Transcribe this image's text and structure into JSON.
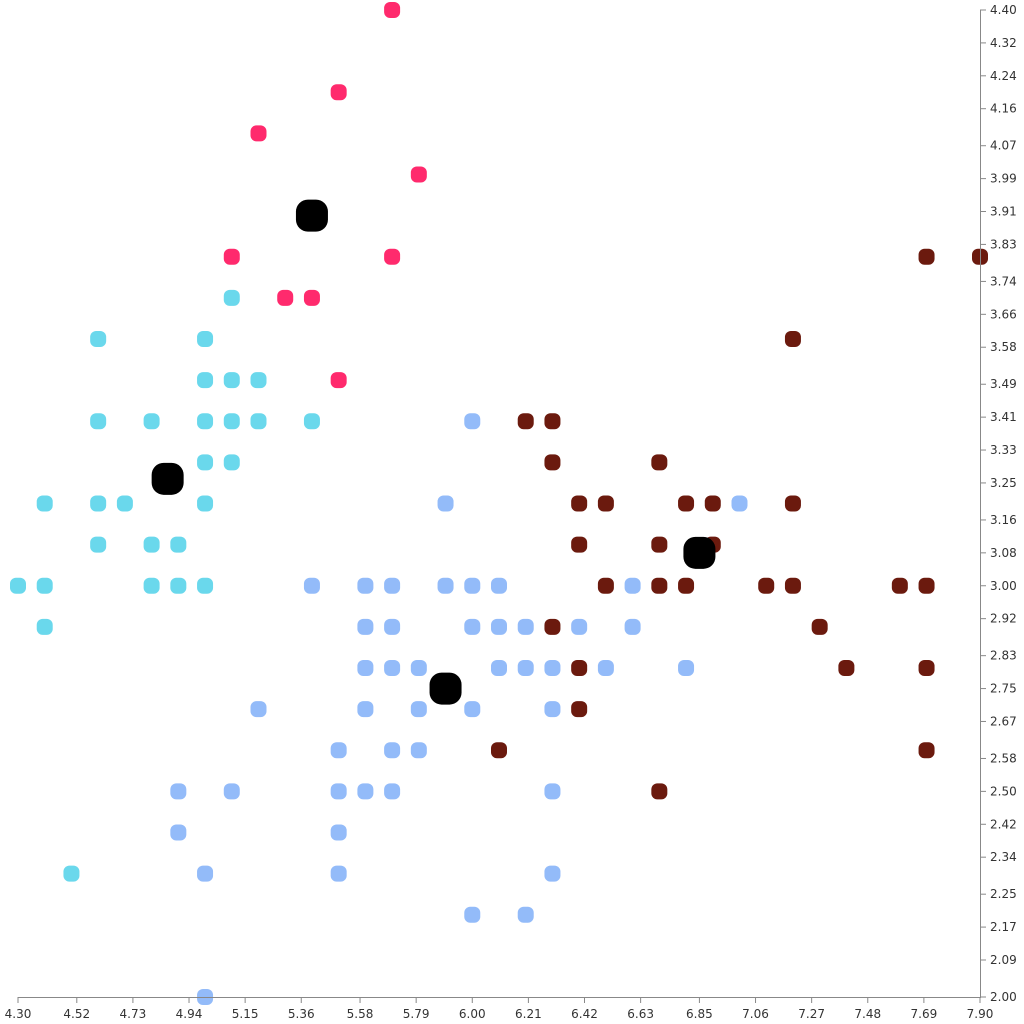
{
  "chart_data": {
    "type": "scatter",
    "title": "",
    "xlabel": "",
    "ylabel": "",
    "xlim": [
      4.3,
      7.9
    ],
    "ylim": [
      2.0,
      4.4
    ],
    "grid": false,
    "legend": "none",
    "x_ticks": [
      "4.30",
      "4.52",
      "4.73",
      "4.94",
      "5.15",
      "5.36",
      "5.58",
      "5.79",
      "6.00",
      "6.21",
      "6.42",
      "6.63",
      "6.85",
      "7.06",
      "7.27",
      "7.48",
      "7.69",
      "7.90"
    ],
    "y_ticks": [
      "2.00",
      "2.09",
      "2.17",
      "2.25",
      "2.34",
      "2.42",
      "2.50",
      "2.58",
      "2.67",
      "2.75",
      "2.83",
      "2.92",
      "3.00",
      "3.08",
      "3.16",
      "3.25",
      "3.33",
      "3.41",
      "3.49",
      "3.58",
      "3.66",
      "3.74",
      "3.83",
      "3.91",
      "3.99",
      "4.07",
      "4.16",
      "4.24",
      "4.32",
      "4.40"
    ],
    "series": [
      {
        "color": "#ff2a6d",
        "points": [
          [
            5.7,
            4.4
          ],
          [
            5.5,
            4.2
          ],
          [
            5.2,
            4.1
          ],
          [
            5.8,
            4.0
          ],
          [
            5.1,
            3.8
          ],
          [
            5.7,
            3.8
          ],
          [
            5.3,
            3.7
          ],
          [
            5.4,
            3.7
          ],
          [
            5.5,
            3.5
          ]
        ]
      },
      {
        "color": "#6ad8ec",
        "points": [
          [
            5.1,
            3.7
          ],
          [
            4.6,
            3.6
          ],
          [
            5.0,
            3.6
          ],
          [
            5.0,
            3.5
          ],
          [
            5.1,
            3.5
          ],
          [
            5.2,
            3.5
          ],
          [
            4.6,
            3.4
          ],
          [
            4.8,
            3.4
          ],
          [
            5.0,
            3.4
          ],
          [
            5.1,
            3.4
          ],
          [
            5.2,
            3.4
          ],
          [
            5.4,
            3.4
          ],
          [
            5.0,
            3.3
          ],
          [
            5.1,
            3.3
          ],
          [
            4.4,
            3.2
          ],
          [
            4.6,
            3.2
          ],
          [
            4.7,
            3.2
          ],
          [
            5.0,
            3.2
          ],
          [
            4.6,
            3.1
          ],
          [
            4.8,
            3.1
          ],
          [
            4.9,
            3.1
          ],
          [
            4.3,
            3.0
          ],
          [
            4.4,
            3.0
          ],
          [
            4.8,
            3.0
          ],
          [
            4.9,
            3.0
          ],
          [
            5.0,
            3.0
          ],
          [
            4.4,
            2.9
          ],
          [
            4.5,
            2.3
          ]
        ]
      },
      {
        "color": "#93bbf9",
        "points": [
          [
            6.0,
            3.4
          ],
          [
            5.9,
            3.2
          ],
          [
            7.0,
            3.2
          ],
          [
            5.4,
            3.0
          ],
          [
            5.6,
            3.0
          ],
          [
            5.7,
            3.0
          ],
          [
            5.9,
            3.0
          ],
          [
            6.0,
            3.0
          ],
          [
            6.1,
            3.0
          ],
          [
            6.6,
            3.0
          ],
          [
            5.6,
            2.9
          ],
          [
            5.7,
            2.9
          ],
          [
            6.0,
            2.9
          ],
          [
            6.1,
            2.9
          ],
          [
            6.2,
            2.9
          ],
          [
            6.4,
            2.9
          ],
          [
            6.6,
            2.9
          ],
          [
            5.6,
            2.8
          ],
          [
            5.7,
            2.8
          ],
          [
            5.8,
            2.8
          ],
          [
            6.1,
            2.8
          ],
          [
            6.2,
            2.8
          ],
          [
            6.3,
            2.8
          ],
          [
            6.5,
            2.8
          ],
          [
            6.8,
            2.8
          ],
          [
            5.2,
            2.7
          ],
          [
            5.6,
            2.7
          ],
          [
            5.8,
            2.7
          ],
          [
            6.0,
            2.7
          ],
          [
            6.3,
            2.7
          ],
          [
            5.5,
            2.6
          ],
          [
            5.7,
            2.6
          ],
          [
            5.8,
            2.6
          ],
          [
            4.9,
            2.5
          ],
          [
            5.1,
            2.5
          ],
          [
            5.5,
            2.5
          ],
          [
            5.6,
            2.5
          ],
          [
            5.7,
            2.5
          ],
          [
            6.3,
            2.5
          ],
          [
            4.9,
            2.4
          ],
          [
            5.5,
            2.4
          ],
          [
            5.0,
            2.3
          ],
          [
            5.5,
            2.3
          ],
          [
            6.3,
            2.3
          ],
          [
            6.0,
            2.2
          ],
          [
            6.2,
            2.2
          ],
          [
            5.0,
            2.0
          ]
        ]
      },
      {
        "color": "#6b1a0e",
        "points": [
          [
            7.7,
            3.8
          ],
          [
            7.9,
            3.8
          ],
          [
            7.2,
            3.6
          ],
          [
            6.2,
            3.4
          ],
          [
            6.3,
            3.4
          ],
          [
            6.3,
            3.3
          ],
          [
            6.7,
            3.3
          ],
          [
            6.4,
            3.2
          ],
          [
            6.5,
            3.2
          ],
          [
            6.8,
            3.2
          ],
          [
            6.9,
            3.2
          ],
          [
            7.2,
            3.2
          ],
          [
            6.4,
            3.1
          ],
          [
            6.7,
            3.1
          ],
          [
            6.9,
            3.1
          ],
          [
            6.5,
            3.0
          ],
          [
            6.7,
            3.0
          ],
          [
            6.8,
            3.0
          ],
          [
            7.1,
            3.0
          ],
          [
            7.2,
            3.0
          ],
          [
            7.6,
            3.0
          ],
          [
            7.7,
            3.0
          ],
          [
            6.3,
            2.9
          ],
          [
            7.3,
            2.9
          ],
          [
            6.4,
            2.8
          ],
          [
            7.4,
            2.8
          ],
          [
            7.7,
            2.8
          ],
          [
            6.4,
            2.7
          ],
          [
            6.1,
            2.6
          ],
          [
            7.7,
            2.6
          ],
          [
            6.7,
            2.5
          ]
        ]
      }
    ],
    "centroids": {
      "color": "#000000",
      "points": [
        [
          5.4,
          3.9
        ],
        [
          4.86,
          3.26
        ],
        [
          6.85,
          3.08
        ],
        [
          5.9,
          2.75
        ]
      ]
    }
  }
}
